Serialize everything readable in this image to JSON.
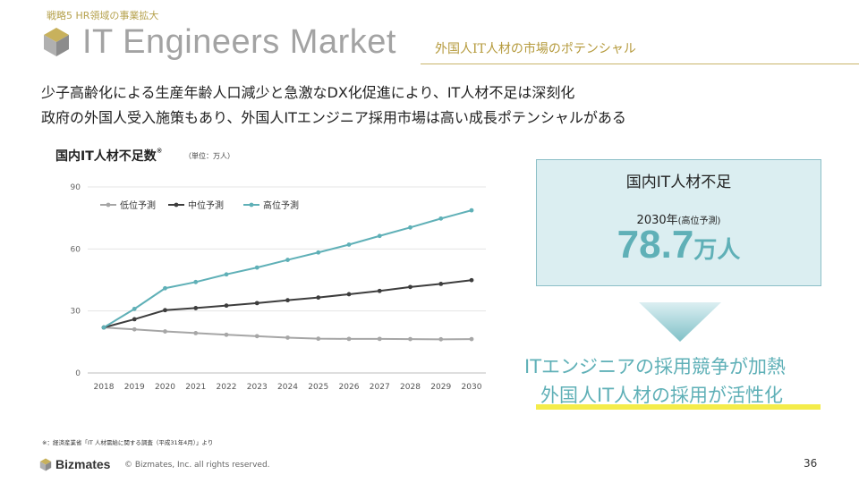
{
  "header": {
    "strategy_label": "戦略5 HR領域の事業拡大",
    "title": "IT Engineers Market",
    "subtitle": "外国人IT人材の市場のポテンシャル"
  },
  "lead": {
    "line1": "少子高齢化による生産年齢人口減少と急激なDX化促進により、IT人材不足は深刻化",
    "line2": "政府の外国人受入施策もあり、外国人ITエンジニア採用市場は高い成長ポテンシャルがある"
  },
  "chart_title": "国内IT人材不足数",
  "chart_title_mark": "※",
  "chart_unit": "（単位：万人）",
  "chart_data": {
    "type": "line",
    "x": [
      "2018",
      "2019",
      "2020",
      "2021",
      "2022",
      "2023",
      "2024",
      "2025",
      "2026",
      "2027",
      "2028",
      "2029",
      "2030"
    ],
    "yticks": [
      0,
      30,
      60,
      90
    ],
    "ylim": [
      0,
      90
    ],
    "grid": true,
    "legend": "top-left",
    "series": [
      {
        "name": "低位予測",
        "color": "#a6a6a6",
        "values": [
          22,
          21.1,
          20.1,
          19.3,
          18.5,
          17.8,
          17.1,
          16.6,
          16.5,
          16.5,
          16.4,
          16.3,
          16.4
        ]
      },
      {
        "name": "中位予測",
        "color": "#3d3d3d",
        "values": [
          22,
          26,
          30.4,
          31.4,
          32.6,
          33.8,
          35.2,
          36.5,
          38.1,
          39.7,
          41.6,
          43.1,
          44.9
        ]
      },
      {
        "name": "高位予測",
        "color": "#5fb0b7",
        "values": [
          22,
          31,
          41,
          44,
          47.7,
          51,
          54.7,
          58.3,
          62.1,
          66.3,
          70.4,
          74.7,
          78.7
        ]
      }
    ]
  },
  "box": {
    "title": "国内IT人材不足",
    "year": "2030年",
    "year_note": "(高位予測)",
    "value": "78.7",
    "unit": "万人"
  },
  "conclusion": {
    "line1": "ITエンジニアの採用競争が加熱",
    "line2": "外国人IT人材の採用が活性化"
  },
  "footnote": "※：経済産業省「IT 人材需給に関する調査（平成31年4月）」より",
  "footer": {
    "brand": "Bizmates",
    "copyright": "© Bizmates, Inc. all rights reserved.",
    "page_number": "36"
  },
  "colors": {
    "accent": "#5fb0b7",
    "gold": "#b6a24e",
    "highlight": "#f4ec4a",
    "box_bg": "#dbeef1"
  },
  "icons": [
    "logo-cube-icon",
    "down-arrow-icon"
  ]
}
